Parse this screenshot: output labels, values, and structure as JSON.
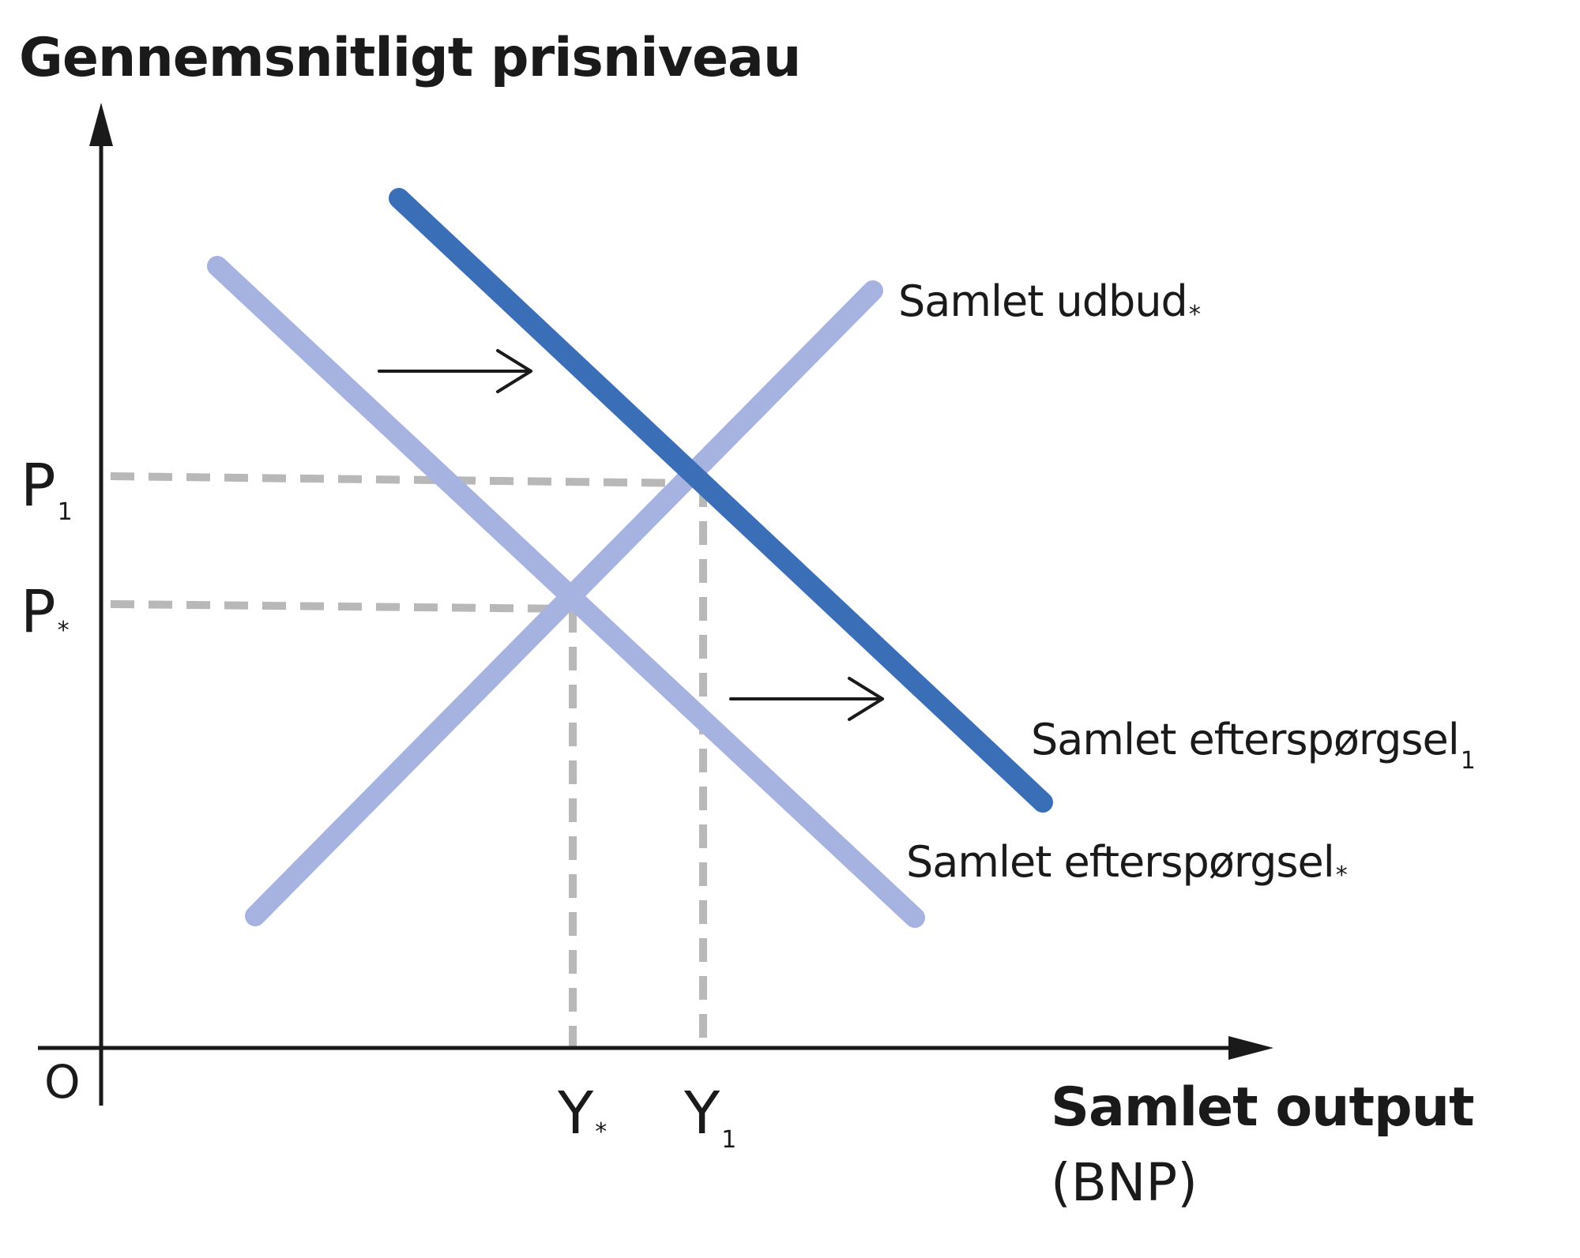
{
  "diagram": {
    "y_axis_title": "Gennemsnitligt prisniveau",
    "x_axis_title": "Samlet output",
    "x_axis_subtitle": "(BNP)",
    "origin_label": "O",
    "curves": {
      "supply": {
        "label": "Samlet udbud",
        "subscript": "*",
        "color": "#a6b3e0"
      },
      "demand_initial": {
        "label": "Samlet efterspørgsel",
        "subscript": "*",
        "color": "#a6b3e0"
      },
      "demand_new": {
        "label": "Samlet efterspørgsel",
        "subscript": "1",
        "color": "#3a6fb7"
      }
    },
    "price_levels": [
      {
        "label": "P",
        "subscript": "1"
      },
      {
        "label": "P",
        "subscript": "*"
      }
    ],
    "output_levels": [
      {
        "label": "Y",
        "subscript": "*"
      },
      {
        "label": "Y",
        "subscript": "1"
      }
    ],
    "guide_color": "#b8b8b8",
    "axis_color": "#1a1a1a"
  }
}
